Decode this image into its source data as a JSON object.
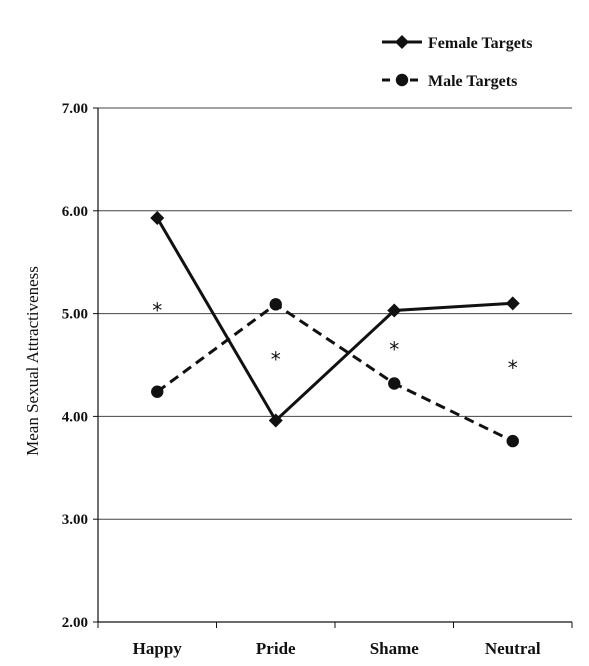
{
  "chart_data": {
    "type": "line",
    "categories": [
      "Happy",
      "Pride",
      "Shame",
      "Neutral"
    ],
    "series": [
      {
        "name": "Female Targets",
        "values": [
          5.93,
          3.96,
          5.03,
          5.1
        ],
        "marker": "diamond",
        "line_style": "solid"
      },
      {
        "name": "Male Targets",
        "values": [
          4.24,
          5.09,
          4.32,
          3.76
        ],
        "marker": "circle",
        "line_style": "dashed"
      }
    ],
    "ylabel": "Mean Sexual Attractiveness",
    "xlabel": "",
    "ylim": [
      2.0,
      7.0
    ],
    "yticks": [
      "2.00",
      "3.00",
      "4.00",
      "5.00",
      "6.00",
      "7.00"
    ],
    "annotations": [
      {
        "text": "*",
        "category": "Happy",
        "y": 5.08
      },
      {
        "text": "*",
        "category": "Pride",
        "y": 4.6
      },
      {
        "text": "*",
        "category": "Shame",
        "y": 4.7
      },
      {
        "text": "*",
        "category": "Neutral",
        "y": 4.52
      }
    ],
    "grid": true,
    "legend_position": "top-right",
    "colors": {
      "line": "#111111",
      "grid": "#444444"
    }
  }
}
